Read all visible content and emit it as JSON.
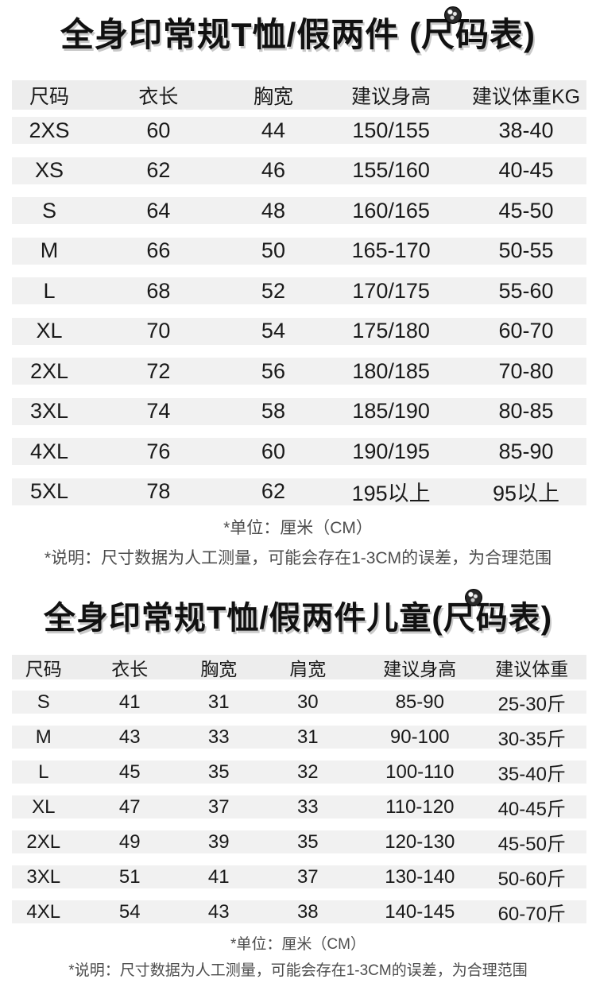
{
  "colors": {
    "row_bg": "#f1f1f1",
    "header_bg": "#ededed",
    "text_color": "#1a1a1a",
    "note_color": "#4d4d4d",
    "title_shadow": "#c9c9c9"
  },
  "adult_section": {
    "title": {
      "prefix": "全身印常规T恤/假两件 (",
      "ruler_char": "尺",
      "suffix": "码表)"
    },
    "sticker_icon": "round-sticker",
    "headers": [
      "尺码",
      "衣长",
      "胸宽",
      "建议身高",
      "建议体重KG"
    ],
    "rows": [
      [
        "2XS",
        "60",
        "44",
        "150/155",
        "38-40"
      ],
      [
        "XS",
        "62",
        "46",
        "155/160",
        "40-45"
      ],
      [
        "S",
        "64",
        "48",
        "160/165",
        "45-50"
      ],
      [
        "M",
        "66",
        "50",
        "165-170",
        "50-55"
      ],
      [
        "L",
        "68",
        "52",
        "170/175",
        "55-60"
      ],
      [
        "XL",
        "70",
        "54",
        "175/180",
        "60-70"
      ],
      [
        "2XL",
        "72",
        "56",
        "180/185",
        "70-80"
      ],
      [
        "3XL",
        "74",
        "58",
        "185/190",
        "80-85"
      ],
      [
        "4XL",
        "76",
        "60",
        "190/195",
        "85-90"
      ],
      [
        "5XL",
        "78",
        "62",
        "195以上",
        "95以上"
      ]
    ],
    "notes": {
      "unit": "*单位：厘米（CM）",
      "desc": "*说明：尺寸数据为人工测量，可能会存在1-3CM的误差，为合理范围"
    }
  },
  "kids_section": {
    "title": {
      "prefix": "全身印常规T恤/假两件儿童(",
      "ruler_char": "尺",
      "suffix": "码表)"
    },
    "sticker_icon": "round-sticker",
    "headers": [
      "尺码",
      "衣长",
      "胸宽",
      "肩宽",
      "建议身高",
      "建议体重"
    ],
    "rows": [
      [
        "S",
        "41",
        "31",
        "30",
        "85-90",
        "25-30斤"
      ],
      [
        "M",
        "43",
        "33",
        "31",
        "90-100",
        "30-35斤"
      ],
      [
        "L",
        "45",
        "35",
        "32",
        "100-110",
        "35-40斤"
      ],
      [
        "XL",
        "47",
        "37",
        "33",
        "110-120",
        "40-45斤"
      ],
      [
        "2XL",
        "49",
        "39",
        "35",
        "120-130",
        "45-50斤"
      ],
      [
        "3XL",
        "51",
        "41",
        "37",
        "130-140",
        "50-60斤"
      ],
      [
        "4XL",
        "54",
        "43",
        "38",
        "140-145",
        "60-70斤"
      ]
    ],
    "notes": {
      "unit": "*单位：厘米（CM）",
      "desc": "*说明：尺寸数据为人工测量，可能会存在1-3CM的误差，为合理范围"
    }
  }
}
